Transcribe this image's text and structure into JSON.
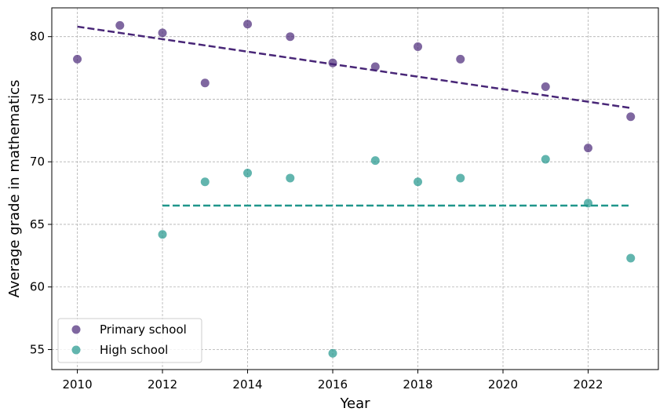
{
  "chart_data": {
    "type": "scatter",
    "title": "",
    "xlabel": "Year",
    "ylabel": "Average grade in mathematics",
    "xlim": [
      2009.4,
      2023.65
    ],
    "ylim": [
      53.4,
      82.3
    ],
    "xticks": [
      "2010",
      "2012",
      "2014",
      "2016",
      "2018",
      "2020",
      "2022"
    ],
    "yticks": [
      "55",
      "60",
      "65",
      "70",
      "75",
      "80"
    ],
    "grid": true,
    "legend_position": "lower-left",
    "series": [
      {
        "name": "Primary school",
        "color": "#482677",
        "points": [
          {
            "x": 2010,
            "y": 78.2
          },
          {
            "x": 2011,
            "y": 80.9
          },
          {
            "x": 2012,
            "y": 80.3
          },
          {
            "x": 2013,
            "y": 76.3
          },
          {
            "x": 2014,
            "y": 81.0
          },
          {
            "x": 2015,
            "y": 80.0
          },
          {
            "x": 2016,
            "y": 77.9
          },
          {
            "x": 2017,
            "y": 77.6
          },
          {
            "x": 2018,
            "y": 79.2
          },
          {
            "x": 2019,
            "y": 78.2
          },
          {
            "x": 2021,
            "y": 76.0
          },
          {
            "x": 2022,
            "y": 71.1
          },
          {
            "x": 2023,
            "y": 73.6
          }
        ],
        "trend": {
          "style": "dashed",
          "x": [
            2010,
            2023
          ],
          "y": [
            80.8,
            74.3
          ]
        }
      },
      {
        "name": "High school",
        "color": "#1f968b",
        "points": [
          {
            "x": 2012,
            "y": 64.2
          },
          {
            "x": 2013,
            "y": 68.4
          },
          {
            "x": 2014,
            "y": 69.1
          },
          {
            "x": 2015,
            "y": 68.7
          },
          {
            "x": 2016,
            "y": 54.7
          },
          {
            "x": 2017,
            "y": 70.1
          },
          {
            "x": 2018,
            "y": 68.4
          },
          {
            "x": 2019,
            "y": 68.7
          },
          {
            "x": 2021,
            "y": 70.2
          },
          {
            "x": 2022,
            "y": 66.7
          },
          {
            "x": 2023,
            "y": 62.3
          }
        ],
        "trend": {
          "style": "dashed",
          "x": [
            2012,
            2023
          ],
          "y": [
            66.5,
            66.5
          ]
        }
      }
    ]
  }
}
